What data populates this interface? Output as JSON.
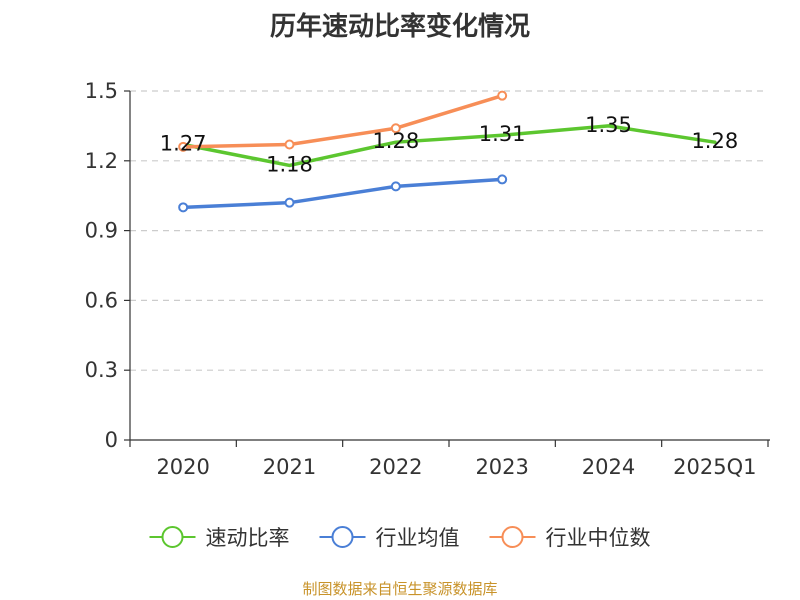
{
  "title": "历年速动比率变化情况",
  "source_note": "制图数据来自恒生聚源数据库",
  "colors": {
    "grid": "#cccccc",
    "axis": "#333333",
    "source_note": "#c8932a"
  },
  "chart_data": {
    "type": "line",
    "title": "历年速动比率变化情况",
    "xlabel": "",
    "ylabel": "",
    "categories": [
      "2020",
      "2021",
      "2022",
      "2023",
      "2024",
      "2025Q1"
    ],
    "ylim": [
      0,
      1.5
    ],
    "yticks": [
      "0",
      "0.3",
      "0.6",
      "0.9",
      "1.2",
      "1.5"
    ],
    "ytick_values": [
      0,
      0.3,
      0.6,
      0.9,
      1.2,
      1.5
    ],
    "grid": true,
    "legend_position": "bottom",
    "series": [
      {
        "name": "速动比率",
        "color": "#5cc62f",
        "show_markers": false,
        "show_labels": true,
        "values": [
          1.27,
          1.18,
          1.28,
          1.31,
          1.35,
          1.28
        ],
        "labels": [
          "1.27",
          "1.18",
          "1.28",
          "1.31",
          "1.35",
          "1.28"
        ]
      },
      {
        "name": "行业均值",
        "color": "#4a7fd6",
        "show_markers": true,
        "show_labels": false,
        "values": [
          1.0,
          1.02,
          1.09,
          1.12,
          null,
          null
        ]
      },
      {
        "name": "行业中位数",
        "color": "#f78e57",
        "show_markers": true,
        "show_labels": false,
        "values": [
          1.26,
          1.27,
          1.34,
          1.48,
          null,
          null
        ]
      }
    ]
  }
}
